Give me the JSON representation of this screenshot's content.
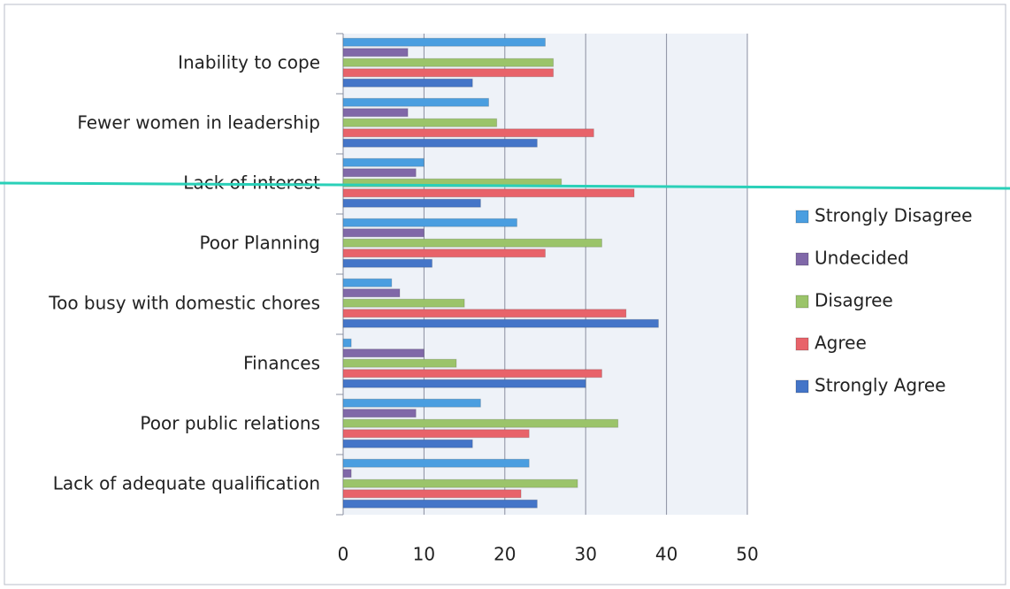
{
  "chart_data": {
    "type": "bar",
    "orientation": "horizontal",
    "categories": [
      "Inability to cope",
      "Fewer women in leadership",
      "Lack of interest",
      "Poor Planning",
      "Too busy with domestic chores",
      "Finances",
      "Poor public relations",
      "Lack of adequate qualification"
    ],
    "series": [
      {
        "name": "Strongly  Disagree",
        "color": "#4a9ee0",
        "values": [
          25,
          18,
          10,
          21.5,
          6,
          1,
          17,
          23
        ]
      },
      {
        "name": "Undecided",
        "color": "#8068a8",
        "values": [
          8,
          8,
          9,
          10,
          7,
          10,
          9,
          1
        ]
      },
      {
        "name": "Disagree",
        "color": "#9bc46a",
        "values": [
          26,
          19,
          27,
          32,
          15,
          14,
          34,
          29
        ]
      },
      {
        "name": "Agree",
        "color": "#e8636a",
        "values": [
          26,
          31,
          36,
          25,
          35,
          32,
          23,
          22
        ]
      },
      {
        "name": "Strongly Agree",
        "color": "#4475c8",
        "values": [
          16,
          24,
          17,
          11,
          39,
          30,
          16,
          24
        ]
      }
    ],
    "xlim": [
      0,
      50
    ],
    "xticks": [
      0,
      10,
      20,
      30,
      40,
      50
    ],
    "grid": true,
    "legend": "right"
  }
}
